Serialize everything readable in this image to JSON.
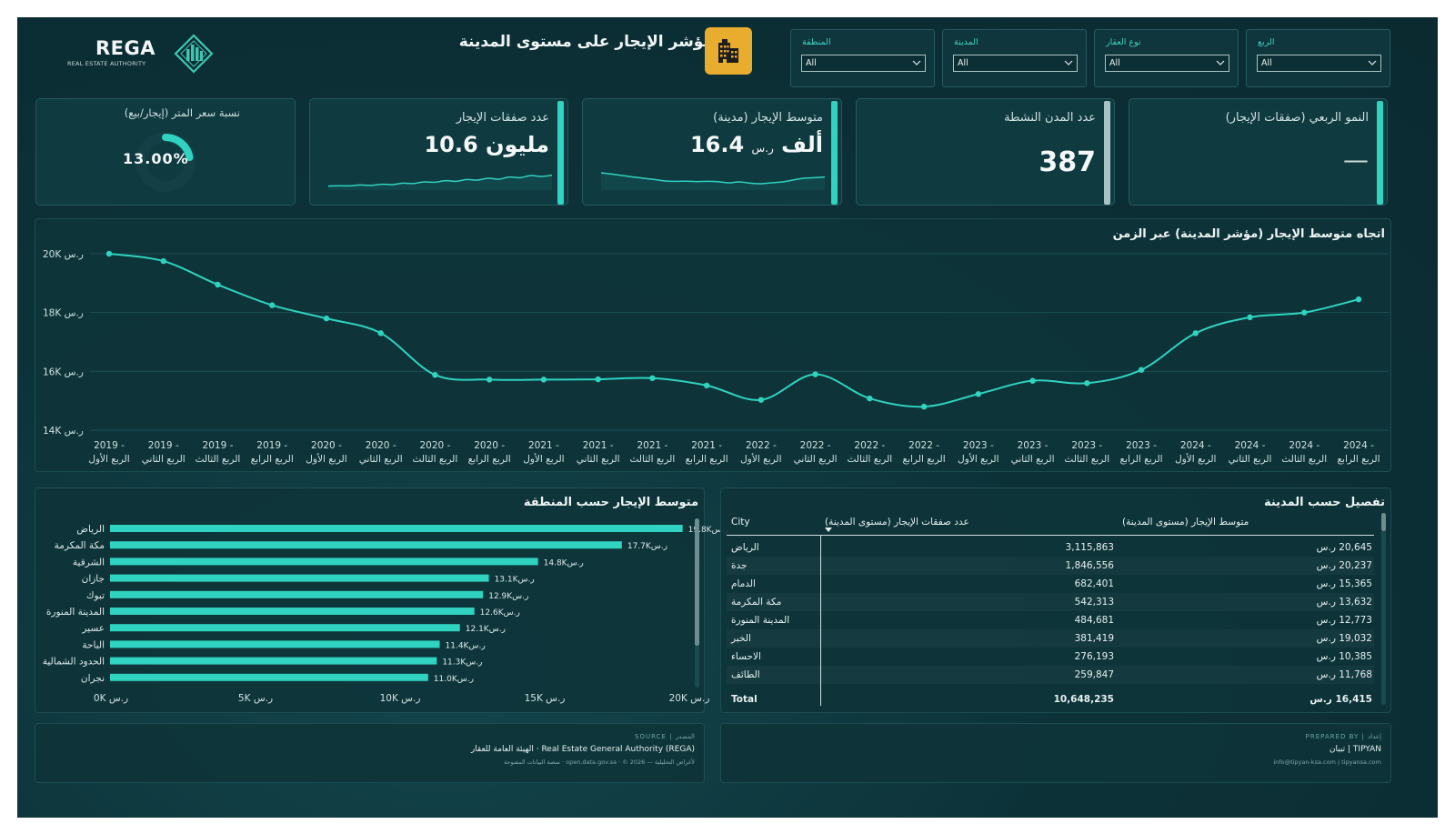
{
  "logo": {
    "name": "REGA",
    "tagline": "REAL ESTATE AUTHORITY"
  },
  "title": "مؤشر الإيجار على مستوى المدينة",
  "filters": [
    {
      "label": "الربع",
      "value": "All"
    },
    {
      "label": "نوع العقار",
      "value": "All"
    },
    {
      "label": "المدينة",
      "value": "All"
    },
    {
      "label": "المنطقة",
      "value": "All"
    }
  ],
  "kpis": {
    "qoq_growth": {
      "label": "النمو الربعي (صفقات الإيجار)",
      "value": "—"
    },
    "active_cities": {
      "label": "عدد المدن النشطة",
      "value": "387"
    },
    "avg_rent": {
      "label": "متوسط الإيجار (مدينة)",
      "value": "16.4",
      "unit": "ألف",
      "currency": "ر.س"
    },
    "rent_deals": {
      "label": "عدد صفقات الإيجار",
      "value": "10.6",
      "unit": "مليون"
    },
    "ratio": {
      "label": "نسبة سعر المتر (إيجار/بيع)",
      "value": "13.00%",
      "fraction": 0.13
    }
  },
  "sparklines": {
    "rent_deals": [
      0.12,
      0.14,
      0.13,
      0.18,
      0.16,
      0.22,
      0.2,
      0.28,
      0.26,
      0.35,
      0.33,
      0.42,
      0.38,
      0.48,
      0.45,
      0.55,
      0.5,
      0.62,
      0.58,
      0.7,
      0.65,
      0.72
    ],
    "avg_rent": [
      0.85,
      0.78,
      0.7,
      0.62,
      0.55,
      0.48,
      0.4,
      0.38,
      0.39,
      0.37,
      0.38,
      0.36,
      0.3,
      0.35,
      0.28,
      0.25,
      0.3,
      0.35,
      0.45,
      0.55,
      0.58,
      0.62
    ]
  },
  "line_chart": {
    "title": "اتجاه متوسط الإيجار (مؤشر المدينة) عبر الزمن"
  },
  "bar_chart": {
    "title": "متوسط الإيجار حسب المنطقة"
  },
  "table": {
    "title": "تفصيل حسب المدينة",
    "headers": {
      "city": "City",
      "deals": "عدد صفقات الإيجار (مستوى المدينة)",
      "rent": "متوسط الإيجار (مستوى المدينة)"
    },
    "rows": [
      {
        "city": "الرياض",
        "deals": "3,115,863",
        "rent": "20,645 ر.س"
      },
      {
        "city": "جدة",
        "deals": "1,846,556",
        "rent": "20,237 ر.س"
      },
      {
        "city": "الدمام",
        "deals": "682,401",
        "rent": "15,365 ر.س"
      },
      {
        "city": "مكة المكرمة",
        "deals": "542,313",
        "rent": "13,632 ر.س"
      },
      {
        "city": "المدينة المنورة",
        "deals": "484,681",
        "rent": "12,773 ر.س"
      },
      {
        "city": "الخبر",
        "deals": "381,419",
        "rent": "19,032 ر.س"
      },
      {
        "city": "الاحساء",
        "deals": "276,193",
        "rent": "10,385 ر.س"
      },
      {
        "city": "الطائف",
        "deals": "259,847",
        "rent": "11,768 ر.س"
      }
    ],
    "total": {
      "label": "Total",
      "deals": "10,648,235",
      "rent": "16,415 ر.س"
    }
  },
  "footer_left": {
    "tag": "SOURCE | المصدر",
    "main": "الهيئة العامة للعقار · Real Estate General Authority (REGA)",
    "sub": "منصة البيانات المفتوحة · open.data.gov.sa · © 2026 — لأغراض التحليلية"
  },
  "footer_right": {
    "tag": "PREPARED BY | إعداد",
    "main": "تبيان | TIPYAN",
    "sub": "info@tipyan-ksa.com | tipyansa.com"
  },
  "chart_data": [
    {
      "type": "line",
      "title": "اتجاه متوسط الإيجار (مؤشر المدينة) عبر الزمن",
      "x": [
        "2019 - الربع الأول",
        "2019 - الربع الثاني",
        "2019 - الربع الثالث",
        "2019 - الربع الرابع",
        "2020 - الربع الأول",
        "2020 - الربع الثاني",
        "2020 - الربع الثالث",
        "2020 - الربع الرابع",
        "2021 - الربع الأول",
        "2021 - الربع الثاني",
        "2021 - الربع الثالث",
        "2021 - الربع الرابع",
        "2022 - الربع الأول",
        "2022 - الربع الثاني",
        "2022 - الربع الثالث",
        "2022 - الربع الرابع",
        "2023 - الربع الأول",
        "2023 - الربع الثاني",
        "2023 - الربع الثالث",
        "2023 - الربع الرابع",
        "2024 - الربع الأول",
        "2024 - الربع الثاني",
        "2024 - الربع الثالث",
        "2024 - الربع الرابع"
      ],
      "values": [
        20000,
        19750,
        18950,
        18250,
        17800,
        17300,
        15880,
        15720,
        15720,
        15730,
        15770,
        15520,
        15030,
        15900,
        15080,
        14800,
        15230,
        15680,
        15600,
        16050,
        17300,
        17840,
        18000,
        18450
      ],
      "ylim": [
        14000,
        20000
      ],
      "yticks": [
        "14K ر.س",
        "16K ر.س",
        "18K ر.س",
        "20K ر.س"
      ],
      "ytick_values": [
        14000,
        16000,
        18000,
        20000
      ],
      "grid": true,
      "color": "#2fd3bf"
    },
    {
      "type": "bar",
      "orientation": "horizontal",
      "title": "متوسط الإيجار حسب المنطقة",
      "categories": [
        "الرياض",
        "مكة المكرمة",
        "الشرقية",
        "جازان",
        "تبوك",
        "المدينة المنورة",
        "عسير",
        "الباحة",
        "الحدود الشمالية",
        "نجران"
      ],
      "values": [
        19800,
        17700,
        14800,
        13100,
        12900,
        12600,
        12100,
        11400,
        11300,
        11000
      ],
      "labels": [
        "19.8Kر.س",
        "17.7Kر.س",
        "14.8Kر.س",
        "13.1Kر.س",
        "12.9Kر.س",
        "12.6Kر.س",
        "12.1Kر.س",
        "11.4Kر.س",
        "11.3Kر.س",
        "11.0Kر.س"
      ],
      "xlim": [
        0,
        20000
      ],
      "xticks": [
        "0K ر.س",
        "5K ر.س",
        "10K ر.س",
        "15K ر.س",
        "20K ر.س"
      ],
      "xtick_values": [
        0,
        5000,
        10000,
        15000,
        20000
      ],
      "color": "#2fd3bf"
    }
  ]
}
